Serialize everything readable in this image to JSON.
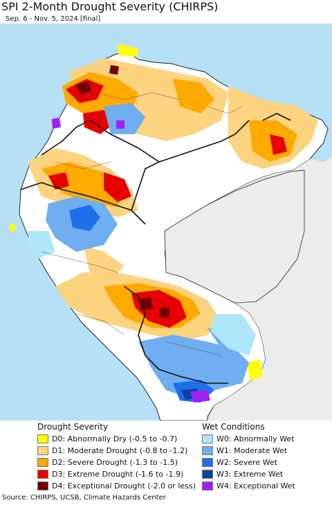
{
  "title": "SPI 2-Month Drought Severity (CHIRPS)",
  "subtitle": "Sep. 6 - Nov. 5, 2024 [final]",
  "colors": {
    "ocean": "#b6e0f5",
    "land": "#ffffff",
    "outside": "#ececec",
    "border": "#222222"
  },
  "legend": {
    "drought": {
      "heading": "Drought Severity",
      "items": [
        {
          "label": "D0: Abnormally Dry (-0.5 to -0.7)",
          "color": "#ffff00"
        },
        {
          "label": "D1: Moderate Drought (-0.8 to -1.2)",
          "color": "#fcd37f"
        },
        {
          "label": "D2: Severe Drought (-1.3 to -1.5)",
          "color": "#ffaa00"
        },
        {
          "label": "D3: Extreme Drought (-1.6 to -1.9)",
          "color": "#e60000"
        },
        {
          "label": "D4: Exceptional Drought (-2.0 or less)",
          "color": "#730000"
        }
      ]
    },
    "wet": {
      "heading": "Wet Conditions",
      "items": [
        {
          "label": "W0: Abnormally Wet",
          "color": "#aee6fa"
        },
        {
          "label": "W1: Moderate Wet",
          "color": "#6faef0"
        },
        {
          "label": "W2: Severe Wet",
          "color": "#1f6fe8"
        },
        {
          "label": "W3: Extreme Wet",
          "color": "#0a3fa3"
        },
        {
          "label": "W4: Exceptional Wet",
          "color": "#a020f0"
        }
      ]
    }
  },
  "source": "Source: CHIRPS, UCSB, Climate Hazards Center"
}
